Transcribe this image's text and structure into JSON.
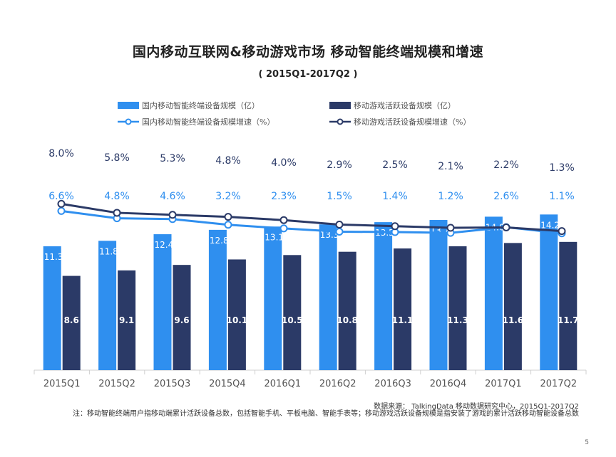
{
  "page": {
    "title": "国内移动互联网&移动游戏市场 移动智能终端规模和增速",
    "subtitle": "( 2015Q1-2017Q2 )",
    "source": "数据来源： TalkingData 移动数据研究中心，2015Q1-2017Q2",
    "note": "注：移动智能终端用户指移动端累计活跃设备总数，包括智能手机、平板电脑、智能手表等；移动游戏活跃设备规模是指安装了游戏的累计活跃移动智能设备总数",
    "page_number": "5"
  },
  "legend": {
    "bar1": "国内移动智能终端设备规模（亿）",
    "bar2": "移动游戏活跃设备规模（亿）",
    "line1": "国内移动智能终端设备规模增速（%）",
    "line2": "移动游戏活跃设备规模增速（%）"
  },
  "colors": {
    "bar1": "#2f8fef",
    "bar2": "#2b3a67",
    "line1": "#2f8fef",
    "line2": "#2b3a67"
  },
  "chart_data": {
    "type": "bar",
    "title": "国内移动互联网&移动游戏市场 移动智能终端规模和增速",
    "categories": [
      "2015Q1",
      "2015Q2",
      "2015Q3",
      "2015Q4",
      "2016Q1",
      "2016Q2",
      "2016Q3",
      "2016Q4",
      "2017Q1",
      "2017Q2"
    ],
    "series": [
      {
        "name": "国内移动智能终端设备规模（亿）",
        "type": "bar",
        "values": [
          11.3,
          11.8,
          12.4,
          12.8,
          13.1,
          13.3,
          13.5,
          13.7,
          14.0,
          14.2
        ],
        "labels": [
          "11.3",
          "11.8",
          "12.4",
          "12.8",
          "13.1",
          "13.3",
          "13.5",
          "13.7",
          "14.0",
          "14.2"
        ]
      },
      {
        "name": "移动游戏活跃设备规模（亿）",
        "type": "bar",
        "values": [
          8.6,
          9.1,
          9.6,
          10.1,
          10.5,
          10.8,
          11.1,
          11.3,
          11.6,
          11.7
        ],
        "labels": [
          "8.6",
          "9.1",
          "9.6",
          "10.1",
          "10.5",
          "10.8",
          "11.1",
          "11.3",
          "11.6",
          "11.7"
        ]
      },
      {
        "name": "国内移动智能终端设备规模增速（%）",
        "type": "line",
        "values": [
          6.6,
          4.8,
          4.6,
          3.2,
          2.3,
          1.5,
          1.4,
          1.2,
          2.6,
          1.1
        ],
        "labels": [
          "6.6%",
          "4.8%",
          "4.6%",
          "3.2%",
          "2.3%",
          "1.5%",
          "1.4%",
          "1.2%",
          "2.6%",
          "1.1%"
        ]
      },
      {
        "name": "移动游戏活跃设备规模增速（%）",
        "type": "line",
        "values": [
          8.0,
          5.8,
          5.3,
          4.8,
          4.0,
          2.9,
          2.5,
          2.1,
          2.2,
          1.3
        ],
        "labels": [
          "8.0%",
          "5.8%",
          "5.3%",
          "4.8%",
          "4.0%",
          "2.9%",
          "2.5%",
          "2.1%",
          "2.2%",
          "1.3%"
        ]
      }
    ],
    "xlabel": "",
    "ylabel": "",
    "ylim": [
      0,
      16
    ]
  }
}
